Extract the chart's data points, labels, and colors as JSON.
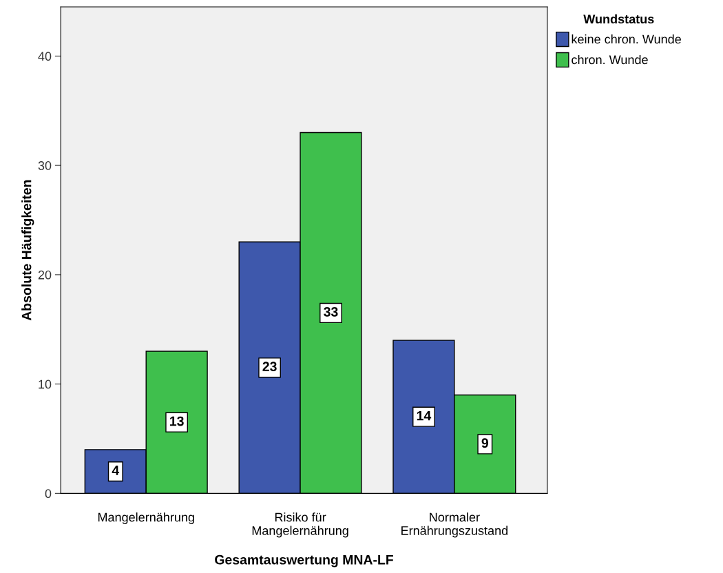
{
  "chart_data": {
    "type": "bar",
    "xlabel": "Gesamtauswertung MNA-LF",
    "ylabel": "Absolute Häufigkeiten",
    "categories": [
      "Mangelernährung",
      "Risiko für\nMangelernährung",
      "Normaler\nErnährungszustand"
    ],
    "series": [
      {
        "name": "keine chron. Wunde",
        "color": "#3e58ac",
        "values": [
          4,
          23,
          14
        ]
      },
      {
        "name": "chron. Wunde",
        "color": "#3fbf4d",
        "values": [
          13,
          33,
          9
        ]
      }
    ],
    "legend_title": "Wundstatus",
    "legend": "top right",
    "data_labels": true,
    "grid": false,
    "ylim": [
      0,
      44.5
    ],
    "yticks": [
      0,
      10,
      20,
      30,
      40
    ]
  }
}
